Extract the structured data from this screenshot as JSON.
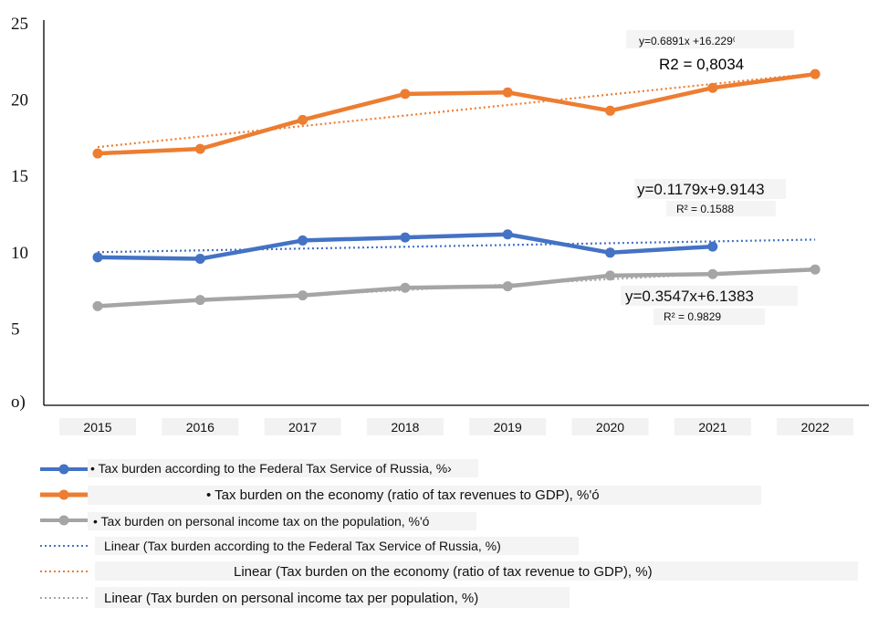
{
  "chart_data": {
    "type": "line",
    "categories": [
      "2015",
      "2016",
      "2017",
      "2018",
      "2019",
      "2020",
      "2021",
      "2022"
    ],
    "ylim": [
      0,
      25
    ],
    "yticks": [
      {
        "value": 25,
        "label": "25"
      },
      {
        "value": 20,
        "label": "20"
      },
      {
        "value": 15,
        "label": "15"
      },
      {
        "value": 10,
        "label": "10"
      },
      {
        "value": 5,
        "label": "5"
      },
      {
        "value": 0,
        "label": "o)"
      }
    ],
    "grid": false,
    "legend_position": "bottom",
    "series": [
      {
        "name": "• Tax burden according to the Federal Tax Service of Russia, %›",
        "color": "#4472C4",
        "values": [
          9.7,
          9.6,
          10.8,
          11.0,
          11.2,
          10.0,
          10.4,
          null
        ]
      },
      {
        "name": "• Tax burden on the economy (ratio of tax revenues to GDP), %'ó",
        "color": "#ED7D31",
        "values": [
          16.5,
          16.8,
          18.7,
          20.4,
          20.5,
          19.3,
          20.8,
          21.7
        ]
      },
      {
        "name": "• Tax burden on personal income tax on the population, %'ó",
        "color": "#A5A5A5",
        "values": [
          6.5,
          6.9,
          7.2,
          7.7,
          7.8,
          8.5,
          8.6,
          8.9
        ]
      }
    ],
    "trendlines": [
      {
        "name": "Linear (Tax burden according to the Federal Tax Service of Russia, %)",
        "color": "#4472C4",
        "slope": 0.1179,
        "intercept": 9.9143,
        "equation": "y=0.1179x+9.9143",
        "r2": "R² = 0.1588"
      },
      {
        "name": "Linear (Tax burden on the economy (ratio of tax revenue to GDP), %)",
        "color": "#ED7D31",
        "slope": 0.6891,
        "intercept": 16.229,
        "equation": "y=0.6891x +16.229⁽",
        "r2": "R2 = 0,8034"
      },
      {
        "name": "Linear (Tax burden on personal income tax per population, %)",
        "color": "#A5A5A5",
        "slope": 0.3547,
        "intercept": 6.1383,
        "equation": "y=0.3547x+6.1383",
        "r2": "R² = 0.9829"
      }
    ]
  }
}
